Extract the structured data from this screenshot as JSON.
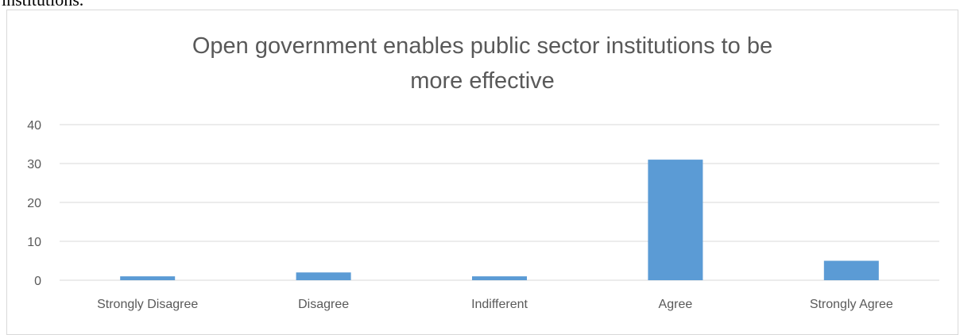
{
  "document": {
    "text_above": "institutions."
  },
  "chart_data": {
    "type": "bar",
    "title_lines": [
      "Open government enables public sector institutions to be",
      "more effective"
    ],
    "categories": [
      "Strongly Disagree",
      "Disagree",
      "Indifferent",
      "Agree",
      "Strongly Agree"
    ],
    "values": [
      1,
      2,
      1,
      31,
      5
    ],
    "ylim": [
      0,
      40
    ],
    "yticks": [
      0,
      10,
      20,
      30,
      40
    ],
    "grid": true,
    "legend": "none",
    "bar_color": "#5b9bd5",
    "grid_color": "#d9d9d9",
    "text_color": "#595959"
  }
}
